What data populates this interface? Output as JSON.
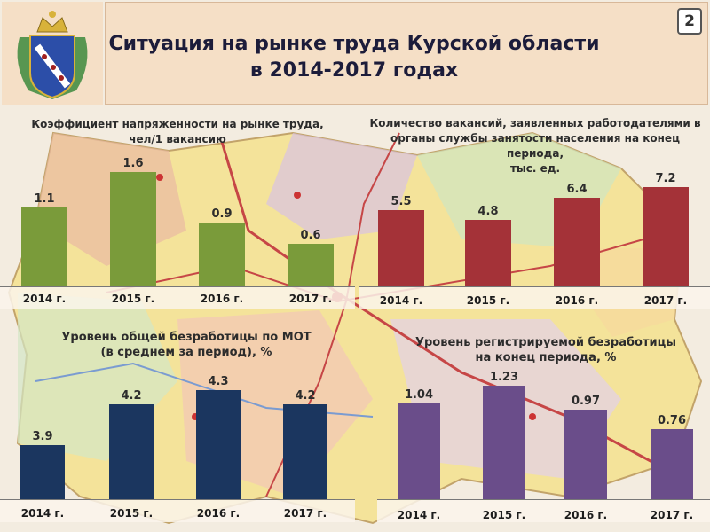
{
  "header": {
    "title_line1": "Ситуация на рынке труда Курской области",
    "title_line2": "в 2014-2017 годах",
    "page_number": "2"
  },
  "colors": {
    "green": "#7a9b3a",
    "red": "#a43238",
    "navy": "#1b365f",
    "purple": "#6a4d8a"
  },
  "chart_data": [
    {
      "id": "tension",
      "type": "bar",
      "title_line1": "Коэффициент напряженности на рынке труда,",
      "title_line2": "чел/1 вакансию",
      "categories": [
        "2014 г.",
        "2015 г.",
        "2016 г.",
        "2017 г."
      ],
      "values": [
        1.1,
        1.6,
        0.9,
        0.6
      ],
      "labels": [
        "1.1",
        "1.6",
        "0.9",
        "0.6"
      ],
      "ylim": [
        0,
        1.8
      ]
    },
    {
      "id": "vacancies",
      "type": "bar",
      "title_line1": "Количество вакансий, заявленных работодателями в",
      "title_line2": "органы службы занятости населения на конец периода,",
      "title_line3": "тыс. ед.",
      "categories": [
        "2014 г.",
        "2015 г.",
        "2016 г.",
        "2017 г."
      ],
      "values": [
        5.5,
        4.8,
        6.4,
        7.2
      ],
      "labels": [
        "5.5",
        "4.8",
        "6.4",
        "7.2"
      ],
      "ylim": [
        0,
        8
      ]
    },
    {
      "id": "ilo",
      "type": "bar",
      "title_line1": "Уровень общей безработицы по МОТ",
      "title_line2": "(в среднем за период), %",
      "categories": [
        "2014 г.",
        "2015 г.",
        "2016 г.",
        "2017 г."
      ],
      "values": [
        3.9,
        4.2,
        4.3,
        4.2
      ],
      "labels": [
        "3.9",
        "4.2",
        "4.3",
        "4.2"
      ],
      "ylim": [
        3.5,
        4.4
      ]
    },
    {
      "id": "registered",
      "type": "bar",
      "title_line1": "Уровень регистрируемой безработицы",
      "title_line2": "на конец периода, %",
      "categories": [
        "2014 г.",
        "2015 г.",
        "2016 г.",
        "2017 г."
      ],
      "values": [
        1.04,
        1.23,
        0.97,
        0.76
      ],
      "labels": [
        "1.04",
        "1.23",
        "0.97",
        "0.76"
      ],
      "ylim": [
        0,
        1.3
      ]
    }
  ]
}
